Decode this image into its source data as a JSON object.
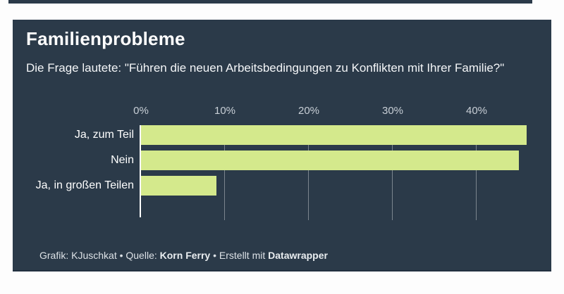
{
  "header": {
    "title": "Familienprobleme",
    "subtitle": "Die Frage lautete: \"Führen die neuen Arbeitsbedingungen zu Konflikten mit Ihrer Familie?\""
  },
  "chart_data": {
    "type": "bar",
    "orientation": "horizontal",
    "title": "Familienprobleme",
    "subtitle": "Die Frage lautete: \"Führen die neuen Arbeitsbedingungen zu Konflikten mit Ihrer Familie?\"",
    "categories": [
      "Ja, zum Teil",
      "Nein",
      "Ja, in großen Teilen"
    ],
    "values": [
      46,
      45,
      9
    ],
    "unit": "%",
    "xlabel": "",
    "ylabel": "",
    "xlim": [
      0,
      47
    ],
    "x_tick_values": [
      0,
      10,
      20,
      30,
      40
    ],
    "x_tick_labels": [
      "0%",
      "10%",
      "20%",
      "30%",
      "40%"
    ],
    "legend": "none",
    "grid": "vertical tick lines visible between bars",
    "bar_color": "#d4e98c",
    "background_color": "#2b3a49",
    "zero_axis_color": "#ffffff"
  },
  "footer": {
    "part1": "Grafik: KJuschkat • Quelle: ",
    "source": "Korn Ferry",
    "part2": " • Erstellt mit ",
    "tool": "Datawrapper"
  }
}
